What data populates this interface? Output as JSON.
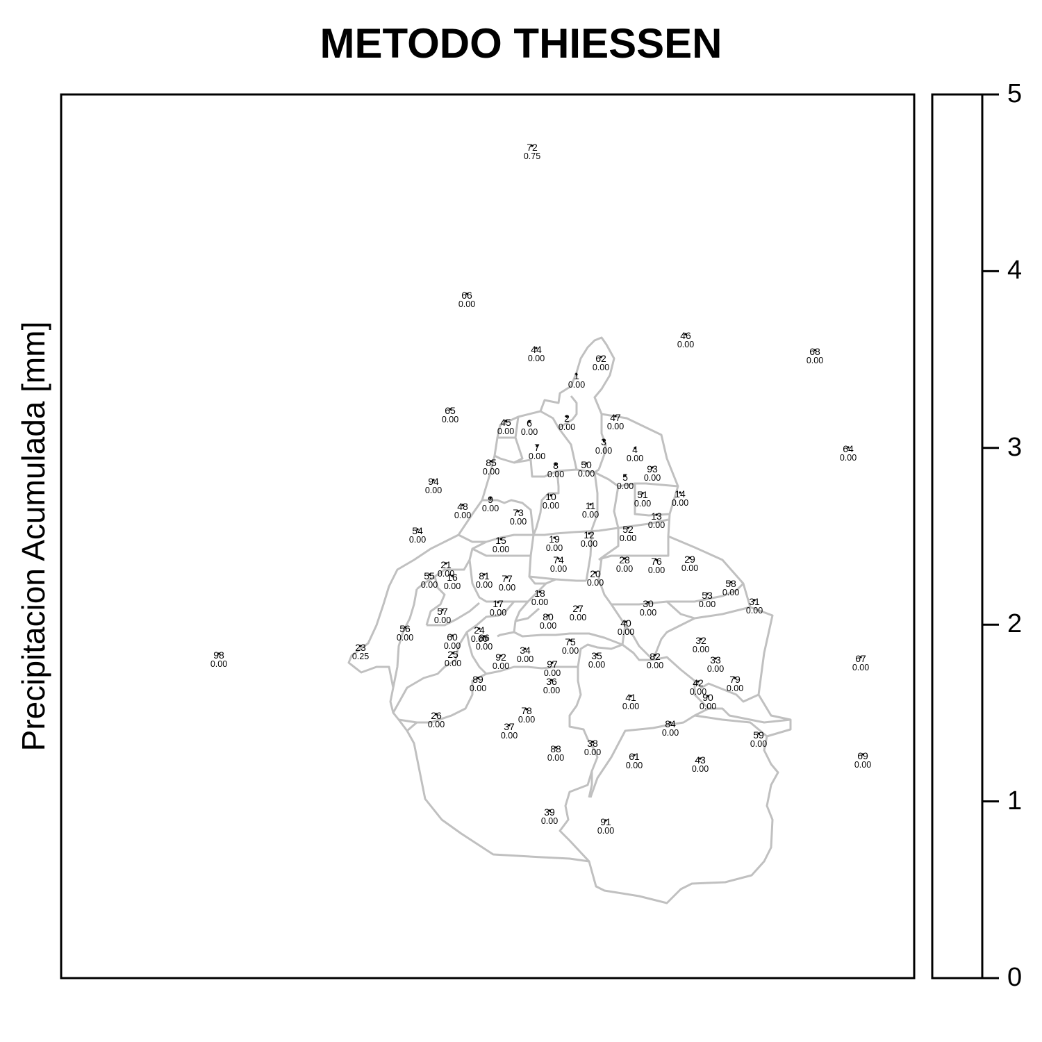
{
  "map": {
    "title": "METODO THIESSEN",
    "ylabel": "Precipitacion Acumulada [mm]",
    "colorbar": {
      "ticks": [
        "0",
        "1",
        "2",
        "3",
        "4",
        "5"
      ],
      "range": [
        0,
        5
      ]
    },
    "boundary_color": "#c0c0c0",
    "stations": [
      {
        "id": "72",
        "value": "0.75"
      },
      {
        "id": "66",
        "value": "0.00"
      },
      {
        "id": "44",
        "value": "0.00"
      },
      {
        "id": "62",
        "value": "0.00"
      },
      {
        "id": "46",
        "value": "0.00"
      },
      {
        "id": "68",
        "value": "0.00"
      },
      {
        "id": "1",
        "value": "0.00"
      },
      {
        "id": "65",
        "value": "0.00"
      },
      {
        "id": "45",
        "value": "0.00"
      },
      {
        "id": "6",
        "value": "0.00"
      },
      {
        "id": "2",
        "value": "0.00"
      },
      {
        "id": "47",
        "value": "0.00"
      },
      {
        "id": "3",
        "value": "0.00"
      },
      {
        "id": "4",
        "value": "0.00"
      },
      {
        "id": "64",
        "value": "0.00"
      },
      {
        "id": "7",
        "value": "0.00"
      },
      {
        "id": "85",
        "value": "0.00"
      },
      {
        "id": "8",
        "value": "0.00"
      },
      {
        "id": "50",
        "value": "0.00"
      },
      {
        "id": "93",
        "value": "0.00"
      },
      {
        "id": "5",
        "value": "0.00"
      },
      {
        "id": "94",
        "value": "0.00"
      },
      {
        "id": "9",
        "value": "0.00"
      },
      {
        "id": "10",
        "value": "0.00"
      },
      {
        "id": "11",
        "value": "0.00"
      },
      {
        "id": "51",
        "value": "0.00"
      },
      {
        "id": "14",
        "value": "0.00"
      },
      {
        "id": "48",
        "value": "0.00"
      },
      {
        "id": "73",
        "value": "0.00"
      },
      {
        "id": "13",
        "value": "0.00"
      },
      {
        "id": "54",
        "value": "0.00"
      },
      {
        "id": "15",
        "value": "0.00"
      },
      {
        "id": "19",
        "value": "0.00"
      },
      {
        "id": "12",
        "value": "0.00"
      },
      {
        "id": "52",
        "value": "0.00"
      },
      {
        "id": "74",
        "value": "0.00"
      },
      {
        "id": "28",
        "value": "0.00"
      },
      {
        "id": "76",
        "value": "0.00"
      },
      {
        "id": "29",
        "value": "0.00"
      },
      {
        "id": "21",
        "value": "0.00"
      },
      {
        "id": "55",
        "value": "0.00"
      },
      {
        "id": "16",
        "value": "0.00"
      },
      {
        "id": "81",
        "value": "0.00"
      },
      {
        "id": "77",
        "value": "0.00"
      },
      {
        "id": "20",
        "value": "0.00"
      },
      {
        "id": "58",
        "value": "0.00"
      },
      {
        "id": "53",
        "value": "0.00"
      },
      {
        "id": "31",
        "value": "0.00"
      },
      {
        "id": "18",
        "value": "0.00"
      },
      {
        "id": "17",
        "value": "0.00"
      },
      {
        "id": "27",
        "value": "0.00"
      },
      {
        "id": "30",
        "value": "0.00"
      },
      {
        "id": "57",
        "value": "0.00"
      },
      {
        "id": "80",
        "value": "0.00"
      },
      {
        "id": "40",
        "value": "0.00"
      },
      {
        "id": "56",
        "value": "0.00"
      },
      {
        "id": "24",
        "value": "0.00"
      },
      {
        "id": "60",
        "value": "0.00"
      },
      {
        "id": "86",
        "value": "0.00"
      },
      {
        "id": "32",
        "value": "0.00"
      },
      {
        "id": "75",
        "value": "0.00"
      },
      {
        "id": "23",
        "value": "0.25"
      },
      {
        "id": "98",
        "value": "0.00"
      },
      {
        "id": "25",
        "value": "0.00"
      },
      {
        "id": "92",
        "value": "0.00"
      },
      {
        "id": "34",
        "value": "0.00"
      },
      {
        "id": "35",
        "value": "0.00"
      },
      {
        "id": "82",
        "value": "0.00"
      },
      {
        "id": "97",
        "value": "0.00"
      },
      {
        "id": "33",
        "value": "0.00"
      },
      {
        "id": "67",
        "value": "0.00"
      },
      {
        "id": "36",
        "value": "0.00"
      },
      {
        "id": "79",
        "value": "0.00"
      },
      {
        "id": "89",
        "value": "0.00"
      },
      {
        "id": "42",
        "value": "0.00"
      },
      {
        "id": "90",
        "value": "0.00"
      },
      {
        "id": "41",
        "value": "0.00"
      },
      {
        "id": "78",
        "value": "0.00"
      },
      {
        "id": "26",
        "value": "0.00"
      },
      {
        "id": "37",
        "value": "0.00"
      },
      {
        "id": "84",
        "value": "0.00"
      },
      {
        "id": "59",
        "value": "0.00"
      },
      {
        "id": "38",
        "value": "0.00"
      },
      {
        "id": "88",
        "value": "0.00"
      },
      {
        "id": "61",
        "value": "0.00"
      },
      {
        "id": "43",
        "value": "0.00"
      },
      {
        "id": "69",
        "value": "0.00"
      },
      {
        "id": "39",
        "value": "0.00"
      },
      {
        "id": "91",
        "value": "0.00"
      }
    ]
  }
}
